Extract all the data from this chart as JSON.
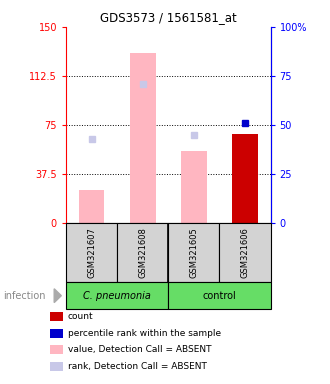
{
  "title": "GDS3573 / 1561581_at",
  "samples": [
    "GSM321607",
    "GSM321608",
    "GSM321605",
    "GSM321606"
  ],
  "bar_values_absent": [
    25,
    130,
    55,
    null
  ],
  "bar_values_count": [
    null,
    null,
    null,
    68
  ],
  "rank_absent": [
    43,
    71,
    45,
    null
  ],
  "rank_present": [
    null,
    null,
    null,
    51
  ],
  "ylim_left": [
    0,
    150
  ],
  "ylim_right": [
    0,
    100
  ],
  "yticks_left": [
    0,
    37.5,
    75,
    112.5,
    150
  ],
  "ytick_labels_left": [
    "0",
    "37.5",
    "75",
    "112.5",
    "150"
  ],
  "yticks_right": [
    0,
    25,
    50,
    75,
    100
  ],
  "ytick_labels_right": [
    "0",
    "25",
    "50",
    "75",
    "100%"
  ],
  "legend_items": [
    {
      "color": "#cc0000",
      "label": "count"
    },
    {
      "color": "#0000cc",
      "label": "percentile rank within the sample"
    },
    {
      "color": "#ffb6c1",
      "label": "value, Detection Call = ABSENT"
    },
    {
      "color": "#c8c8e8",
      "label": "rank, Detection Call = ABSENT"
    }
  ],
  "absent_bar_color": "#ffb6c1",
  "count_bar_color": "#cc0000",
  "absent_rank_color": "#c8c8e8",
  "present_rank_color": "#0000cc",
  "bar_width": 0.5,
  "sample_bg_color": "#d3d3d3",
  "group_green": "#66dd66"
}
